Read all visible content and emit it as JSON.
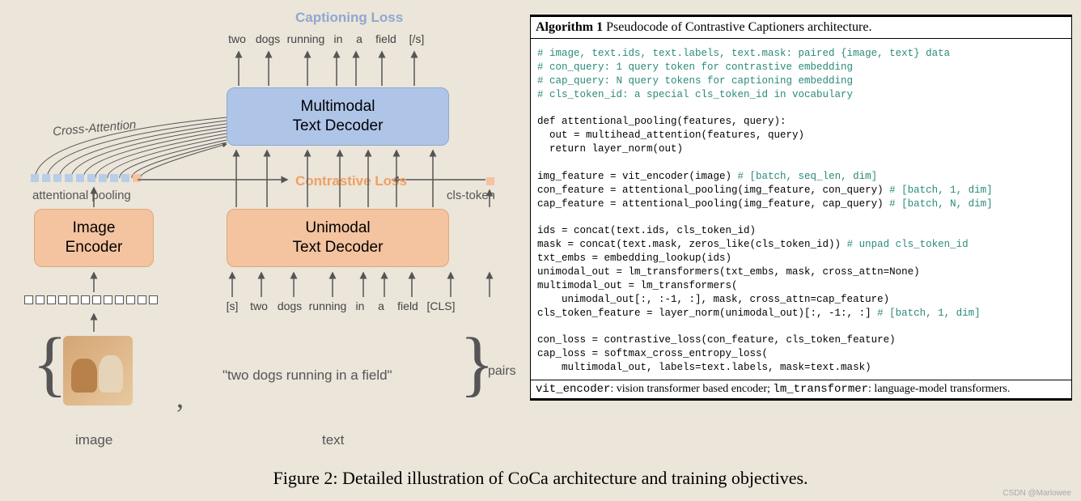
{
  "figure": {
    "caption": "Figure 2: Detailed illustration of CoCa architecture and training objectives.",
    "watermark": "CSDN @Marlowee",
    "background_color": "#ebe5da"
  },
  "diagram": {
    "blocks": {
      "image_encoder": {
        "label": "Image\nEncoder",
        "bg": "#f4c39f",
        "border": "#e0a878"
      },
      "unimodal_decoder": {
        "label": "Unimodal\nText Decoder",
        "bg": "#f4c39f",
        "border": "#e0a878"
      },
      "multimodal_decoder": {
        "label": "Multimodal\nText Decoder",
        "bg": "#afc5e8",
        "border": "#8fa8d0"
      }
    },
    "losses": {
      "captioning": {
        "label": "Captioning Loss",
        "color": "#8fa8d0"
      },
      "contrastive": {
        "label": "Contrastive Loss",
        "color": "#f0a060"
      }
    },
    "labels": {
      "attentional_pooling": "attentional pooling",
      "cls_token": "cls-token",
      "cross_attention": "Cross-Attention"
    },
    "output_tokens": [
      "two",
      "dogs",
      "running",
      "in",
      "a",
      "field",
      "[/s]"
    ],
    "input_tokens": [
      "[s]",
      "two",
      "dogs",
      "running",
      "in",
      "a",
      "field",
      "[CLS]"
    ],
    "num_patches": 12,
    "pool_squares": {
      "count": 10,
      "color": "#b8cde8",
      "end_color": "#f4c39f"
    },
    "pairs": {
      "text_example": "\"two dogs running in a field\"",
      "image_label": "image",
      "text_label": "text",
      "pairs_label": "pairs",
      "brace_color": "#555555"
    },
    "arrow_color": "#555555",
    "fontsize_block": 19,
    "fontsize_loss": 17,
    "fontsize_small": 15,
    "fontsize_token": 14
  },
  "algorithm": {
    "title_bold": "Algorithm 1",
    "title_rest": " Pseudocode of Contrastive Captioners architecture.",
    "comment_color": "#2a8a7a",
    "text_color": "#000000",
    "background": "#ffffff",
    "font_family": "Courier New",
    "fontsize": 12.5,
    "comments": [
      "# image, text.ids, text.labels, text.mask: paired {image, text} data",
      "# con_query: 1 query token for contrastive embedding",
      "# cap_query: N query tokens for captioning embedding",
      "# cls_token_id: a special cls_token_id in vocabulary"
    ],
    "code_lines": [
      "def attentional_pooling(features, query):",
      "  out = multihead_attention(features, query)",
      "  return layer_norm(out)",
      "",
      "img_feature = vit_encoder(image) ",
      "con_feature = attentional_pooling(img_feature, con_query) ",
      "cap_feature = attentional_pooling(img_feature, cap_query) ",
      "",
      "ids = concat(text.ids, cls_token_id)",
      "mask = concat(text.mask, zeros_like(cls_token_id)) ",
      "txt_embs = embedding_lookup(ids)",
      "unimodal_out = lm_transformers(txt_embs, mask, cross_attn=None)",
      "multimodal_out = lm_transformers(",
      "    unimodal_out[:, :-1, :], mask, cross_attn=cap_feature)",
      "cls_token_feature = layer_norm(unimodal_out)[:, -1:, :] ",
      "",
      "con_loss = contrastive_loss(con_feature, cls_token_feature)",
      "cap_loss = softmax_cross_entropy_loss(",
      "    multimodal_out, labels=text.labels, mask=text.mask)"
    ],
    "inline_comments": {
      "4": "# [batch, seq_len, dim]",
      "5": "# [batch, 1, dim]",
      "6": "# [batch, N, dim]",
      "9": "# unpad cls_token_id",
      "14": "# [batch, 1, dim]"
    },
    "footer_pre1": "vit_encoder",
    "footer_txt1": ": vision transformer based encoder; ",
    "footer_pre2": "lm_transformer",
    "footer_txt2": ": language-model transformers."
  }
}
